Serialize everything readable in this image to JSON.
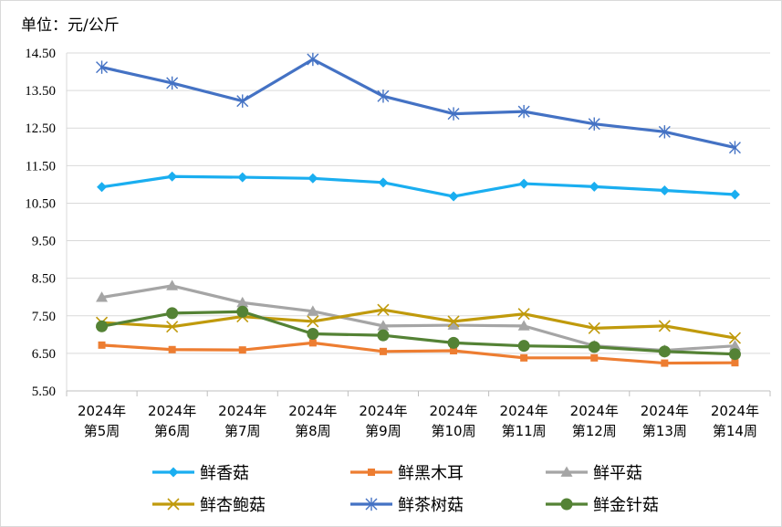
{
  "chart_data": {
    "type": "line",
    "unit_label": "单位：元/公斤",
    "categories": [
      [
        "2024年",
        "第5周"
      ],
      [
        "2024年",
        "第6周"
      ],
      [
        "2024年",
        "第7周"
      ],
      [
        "2024年",
        "第8周"
      ],
      [
        "2024年",
        "第9周"
      ],
      [
        "2024年",
        "第10周"
      ],
      [
        "2024年",
        "第11周"
      ],
      [
        "2024年",
        "第12周"
      ],
      [
        "2024年",
        "第13周"
      ],
      [
        "2024年",
        "第14周"
      ]
    ],
    "y_ticks": [
      "5.50",
      "6.50",
      "7.50",
      "8.50",
      "9.50",
      "10.50",
      "11.50",
      "12.50",
      "13.50",
      "14.50"
    ],
    "ylim": [
      5.5,
      14.5
    ],
    "grid": "horizontal",
    "legend_position": "bottom",
    "series": [
      {
        "name": "鲜香菇",
        "color": "#1AAEF0",
        "marker": "diamond",
        "values": [
          10.93,
          11.21,
          11.19,
          11.16,
          11.05,
          10.68,
          11.02,
          10.94,
          10.84,
          10.73
        ]
      },
      {
        "name": "鲜黑木耳",
        "color": "#ED7D31",
        "marker": "square",
        "values": [
          6.72,
          6.6,
          6.59,
          6.78,
          6.55,
          6.57,
          6.38,
          6.38,
          6.24,
          6.25
        ]
      },
      {
        "name": "鲜平菇",
        "color": "#A5A5A5",
        "marker": "triangle",
        "values": [
          7.99,
          8.3,
          7.85,
          7.62,
          7.23,
          7.25,
          7.23,
          6.7,
          6.58,
          6.7
        ]
      },
      {
        "name": "鲜杏鲍菇",
        "color": "#C09A0C",
        "marker": "x",
        "values": [
          7.32,
          7.21,
          7.48,
          7.35,
          7.66,
          7.35,
          7.55,
          7.17,
          7.23,
          6.91
        ]
      },
      {
        "name": "鲜茶树菇",
        "color": "#4472C4",
        "marker": "asterisk",
        "values": [
          14.12,
          13.7,
          13.22,
          14.33,
          13.35,
          12.88,
          12.94,
          12.61,
          12.4,
          11.98
        ]
      },
      {
        "name": "鲜金针菇",
        "color": "#548235",
        "marker": "circle",
        "values": [
          7.22,
          7.57,
          7.61,
          7.02,
          6.98,
          6.78,
          6.7,
          6.67,
          6.55,
          6.48
        ]
      }
    ]
  }
}
